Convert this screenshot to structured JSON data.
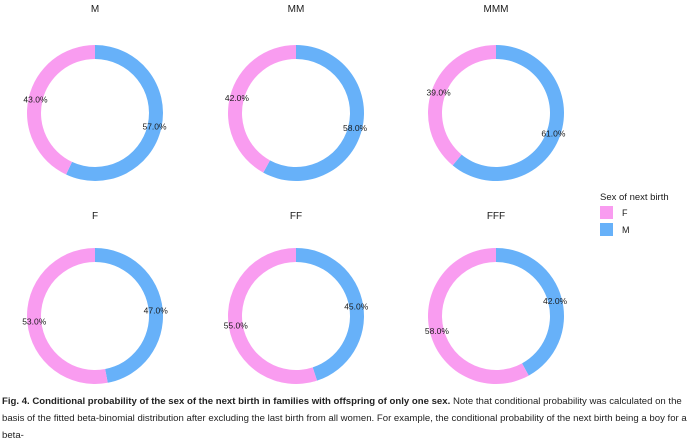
{
  "chart_data": {
    "type": "pie",
    "variant": "donut",
    "panels": [
      {
        "title": "M",
        "values": {
          "F": 43.0,
          "M": 57.0
        },
        "labels": {
          "F": "43.0%",
          "M": "57.0%"
        }
      },
      {
        "title": "MM",
        "values": {
          "F": 42.0,
          "M": 58.0
        },
        "labels": {
          "F": "42.0%",
          "M": "58.0%"
        }
      },
      {
        "title": "MMM",
        "values": {
          "F": 39.0,
          "M": 61.0
        },
        "labels": {
          "F": "39.0%",
          "M": "61.0%"
        }
      },
      {
        "title": "F",
        "values": {
          "F": 53.0,
          "M": 47.0
        },
        "labels": {
          "F": "53.0%",
          "M": "47.0%"
        }
      },
      {
        "title": "FF",
        "values": {
          "F": 55.0,
          "M": 45.0
        },
        "labels": {
          "F": "55.0%",
          "M": "45.0%"
        }
      },
      {
        "title": "FFF",
        "values": {
          "F": 58.0,
          "M": 42.0
        },
        "labels": {
          "F": "58.0%",
          "M": "42.0%"
        }
      }
    ],
    "legend": {
      "title": "Sex of next birth",
      "position": "right",
      "entries": [
        {
          "key": "F",
          "label": "F",
          "color": "#f99cf0"
        },
        {
          "key": "M",
          "label": "M",
          "color": "#67b1f9"
        }
      ]
    }
  },
  "caption": {
    "bold": "Fig. 4. Conditional probability of the sex of the next birth in families with offspring of only one sex.",
    "rest": " Note that conditional probability was calculated on the basis of the fitted beta-binomial distribution after excluding the last birth from all women. For example, the conditional probability of the next birth being a boy for a beta-"
  }
}
